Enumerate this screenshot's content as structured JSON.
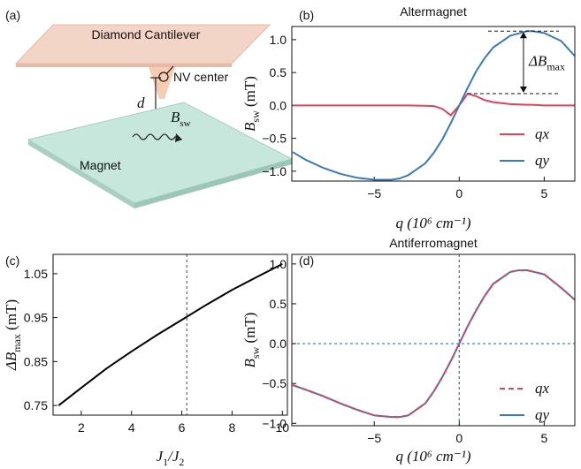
{
  "diagram": {
    "label": "(a)",
    "cantilever": "Diamond Cantilever",
    "nv": "NV center",
    "distance": "d",
    "field": "B",
    "field_sub": "sw",
    "magnet": "Magnet"
  },
  "chart_data": [
    {
      "type": "line",
      "panel": "(b)",
      "title": "Altermagnet",
      "x": [
        -9.8,
        -9,
        -8,
        -7,
        -6,
        -5,
        -4,
        -3.5,
        -3,
        -2,
        -1.5,
        -1,
        -0.5,
        0,
        0.5,
        1,
        1.5,
        2,
        3,
        4,
        4.3,
        5,
        6,
        6.8
      ],
      "series": [
        {
          "name": "qx",
          "color": "#e0425a",
          "dash": false,
          "values": [
            0,
            0,
            0,
            0,
            0,
            0,
            0,
            0,
            0,
            -0.005,
            -0.01,
            -0.05,
            -0.15,
            0,
            0.18,
            0.14,
            0.08,
            0.05,
            0.02,
            0.01,
            0.01,
            0,
            0,
            0
          ]
        },
        {
          "name": "qy",
          "color": "#3a7ab8",
          "dash": false,
          "values": [
            -0.71,
            -0.83,
            -0.95,
            -1.04,
            -1.1,
            -1.13,
            -1.13,
            -1.11,
            -1.06,
            -0.88,
            -0.72,
            -0.52,
            -0.27,
            0,
            0.27,
            0.52,
            0.72,
            0.88,
            1.06,
            1.13,
            1.13,
            1.1,
            0.98,
            0.75
          ]
        }
      ],
      "xlim": [
        -9.85,
        6.8
      ],
      "ylim": [
        -1.15,
        1.2
      ],
      "xticks": [
        {
          "value": -5,
          "label": "−5"
        },
        0,
        5
      ],
      "yticks": [
        {
          "value": -1,
          "label": "−1.0"
        },
        {
          "value": -0.5,
          "label": "−0.5"
        },
        {
          "value": 0,
          "label": "0.0"
        },
        0.5,
        {
          "value": 1,
          "label": "1.0"
        }
      ],
      "xlabel": [
        "q (10⁶ cm⁻¹)"
      ],
      "ylabel": [
        "B",
        "sw",
        " (mT)"
      ],
      "annotation": [
        "ΔB",
        "max"
      ],
      "annotation_levels": [
        0.18,
        1.13
      ]
    },
    {
      "type": "line",
      "panel": "(c)",
      "x": [
        1.1,
        2,
        3,
        4,
        5,
        6,
        7,
        8,
        9,
        10
      ],
      "series": [
        {
          "color": "#000000",
          "dash": false,
          "values": [
            0.75,
            0.79,
            0.834,
            0.873,
            0.91,
            0.945,
            0.98,
            1.013,
            1.043,
            1.072
          ]
        }
      ],
      "xlim": [
        0.88,
        10.2
      ],
      "ylim": [
        0.728,
        1.094
      ],
      "xticks": [
        2,
        4,
        6,
        8,
        10
      ],
      "yticks": [
        0.75,
        0.85,
        0.95,
        1.05
      ],
      "xlabel": [
        "J",
        "1",
        "/J",
        "2"
      ],
      "ylabel": [
        "ΔB",
        "max",
        " (mT)"
      ],
      "vline": 6.2
    },
    {
      "type": "line",
      "panel": "(d)",
      "title": "Antiferromagnet",
      "x": [
        -9.8,
        -9,
        -8,
        -7,
        -6,
        -5,
        -4,
        -3.5,
        -3,
        -2,
        -1.5,
        -1,
        -0.5,
        0,
        0.5,
        1,
        1.5,
        2,
        3,
        3.5,
        4,
        5,
        6,
        6.8
      ],
      "series": [
        {
          "name": "qy",
          "color": "#3a7ab8",
          "dash": false,
          "values": [
            -0.52,
            -0.58,
            -0.66,
            -0.75,
            -0.83,
            -0.9,
            -0.92,
            -0.92,
            -0.9,
            -0.75,
            -0.6,
            -0.42,
            -0.22,
            0,
            0.22,
            0.42,
            0.6,
            0.75,
            0.9,
            0.92,
            0.92,
            0.87,
            0.7,
            0.55
          ]
        },
        {
          "name": "qx",
          "color": "#e0425a",
          "dash": true,
          "values": [
            -0.52,
            -0.58,
            -0.66,
            -0.75,
            -0.83,
            -0.9,
            -0.92,
            -0.92,
            -0.9,
            -0.75,
            -0.6,
            -0.42,
            -0.22,
            0,
            0.22,
            0.42,
            0.6,
            0.75,
            0.9,
            0.92,
            0.92,
            0.87,
            0.7,
            0.55
          ]
        }
      ],
      "xlim": [
        -9.85,
        6.8
      ],
      "ylim": [
        -1.03,
        1.12
      ],
      "xticks": [
        {
          "value": -5,
          "label": "−5"
        },
        0,
        5
      ],
      "yticks": [
        {
          "value": -1,
          "label": "−1.0"
        },
        {
          "value": -0.5,
          "label": "−0.5"
        },
        {
          "value": 0,
          "label": "0.0"
        },
        0.5,
        {
          "value": 1,
          "label": "1.0"
        }
      ],
      "xlabel": [
        "q (10⁶ cm⁻¹)"
      ],
      "ylabel": [
        "B",
        "sw",
        " (mT)"
      ],
      "vline": 0,
      "hline": 0
    }
  ]
}
